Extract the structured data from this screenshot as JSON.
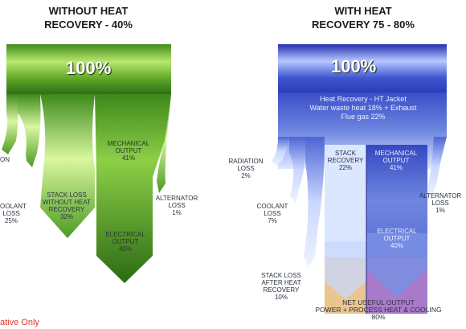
{
  "left": {
    "header_line1": "WITHOUT HEAT",
    "header_line2": "RECOVERY - 40%",
    "total": "100%",
    "radiation": "ON",
    "coolant_1": "OOLANT",
    "coolant_2": "LOSS",
    "coolant_3": "25%",
    "stack_1": "STACK LOSS",
    "stack_2": "WITHOUT HEAT",
    "stack_3": "RECOVERY",
    "stack_4": "32%",
    "mech_1": "MECHANICAL",
    "mech_2": "OUTPUT",
    "mech_3": "41%",
    "alt_1": "ALTERNATOR",
    "alt_2": "LOSS",
    "alt_3": "1%",
    "elec_1": "ELECTRICAL",
    "elec_2": "OUTPUT",
    "elec_3": "40%"
  },
  "right": {
    "header_line1": "WITH HEAT",
    "header_line2": "RECOVERY 75 - 80%",
    "total": "100%",
    "recovery_1": "Heat Recovery - HT Jacket",
    "recovery_2": "Water waste heat 18% + Exhaust",
    "recovery_3": "Flue gas 22%",
    "radiation_1": "RADIATION",
    "radiation_2": "LOSS",
    "radiation_3": "2%",
    "stackrec_1": "STACK",
    "stackrec_2": "RECOVERY",
    "stackrec_3": "22%",
    "mech_1": "MECHANICAL",
    "mech_2": "OUTPUT",
    "mech_3": "41%",
    "alt_1": "ALTERNATOR",
    "alt_2": "LOSS",
    "alt_3": "1%",
    "coolant_1": "COOLANT",
    "coolant_2": "LOSS",
    "coolant_3": "7%",
    "elec_1": "ELECTRICAL",
    "elec_2": "OUTPUT",
    "elec_3": "40%",
    "stackafter_1": "STACK LOSS",
    "stackafter_2": "AFTER HEAT",
    "stackafter_3": "RECOVERY",
    "stackafter_4": "10%",
    "net_1": "NET USEFUL OUTPUT",
    "net_2": "POWER + PROCESS HEAT & COOLING",
    "net_3": "80%"
  },
  "footnote": "ative Only",
  "colors": {
    "green_dark": "#2f6e16",
    "green_light": "#c9ee8a",
    "blue_dark": "#2736b0",
    "blue_light": "#dfe8ff",
    "tan": "#e9c590",
    "violet": "#a97ac9",
    "note_red": "#e0362a"
  }
}
